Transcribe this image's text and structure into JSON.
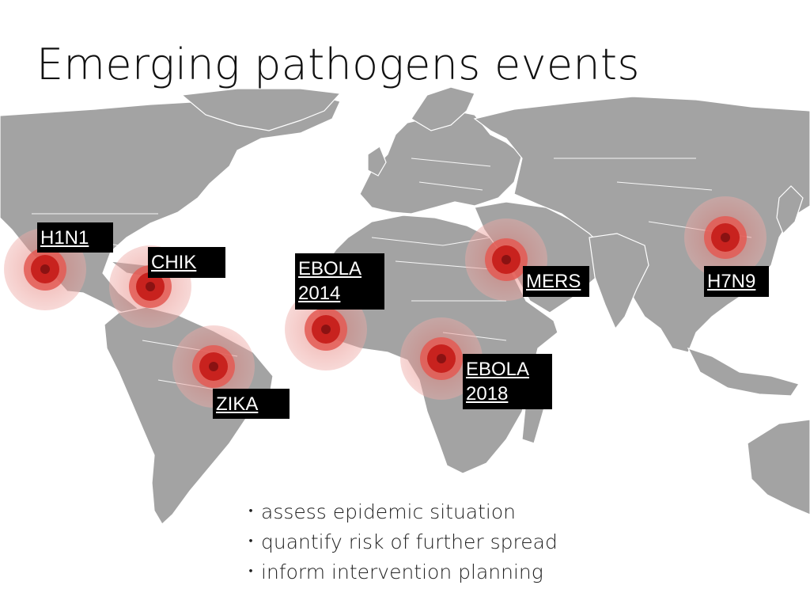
{
  "slide": {
    "title": "Emerging pathogens events"
  },
  "map": {
    "land_color": "#a3a3a3",
    "marker_colors": {
      "outer": "#e8a1a1",
      "mid": "#e35a54",
      "inner": "#c8221e",
      "core": "#8a1212"
    }
  },
  "events": [
    {
      "id": "h1n1",
      "label": "H1N1"
    },
    {
      "id": "chik",
      "label": "CHIK"
    },
    {
      "id": "ebola2014",
      "label": "EBOLA\n2014"
    },
    {
      "id": "mers",
      "label": "MERS"
    },
    {
      "id": "h7n9",
      "label": "H7N9"
    },
    {
      "id": "zika",
      "label": "ZIKA"
    },
    {
      "id": "ebola2018",
      "label": "EBOLA\n2018"
    }
  ],
  "bullets": [
    "assess epidemic situation",
    "quantify risk of further spread",
    "inform intervention planning"
  ],
  "bullet_glyph": "・"
}
